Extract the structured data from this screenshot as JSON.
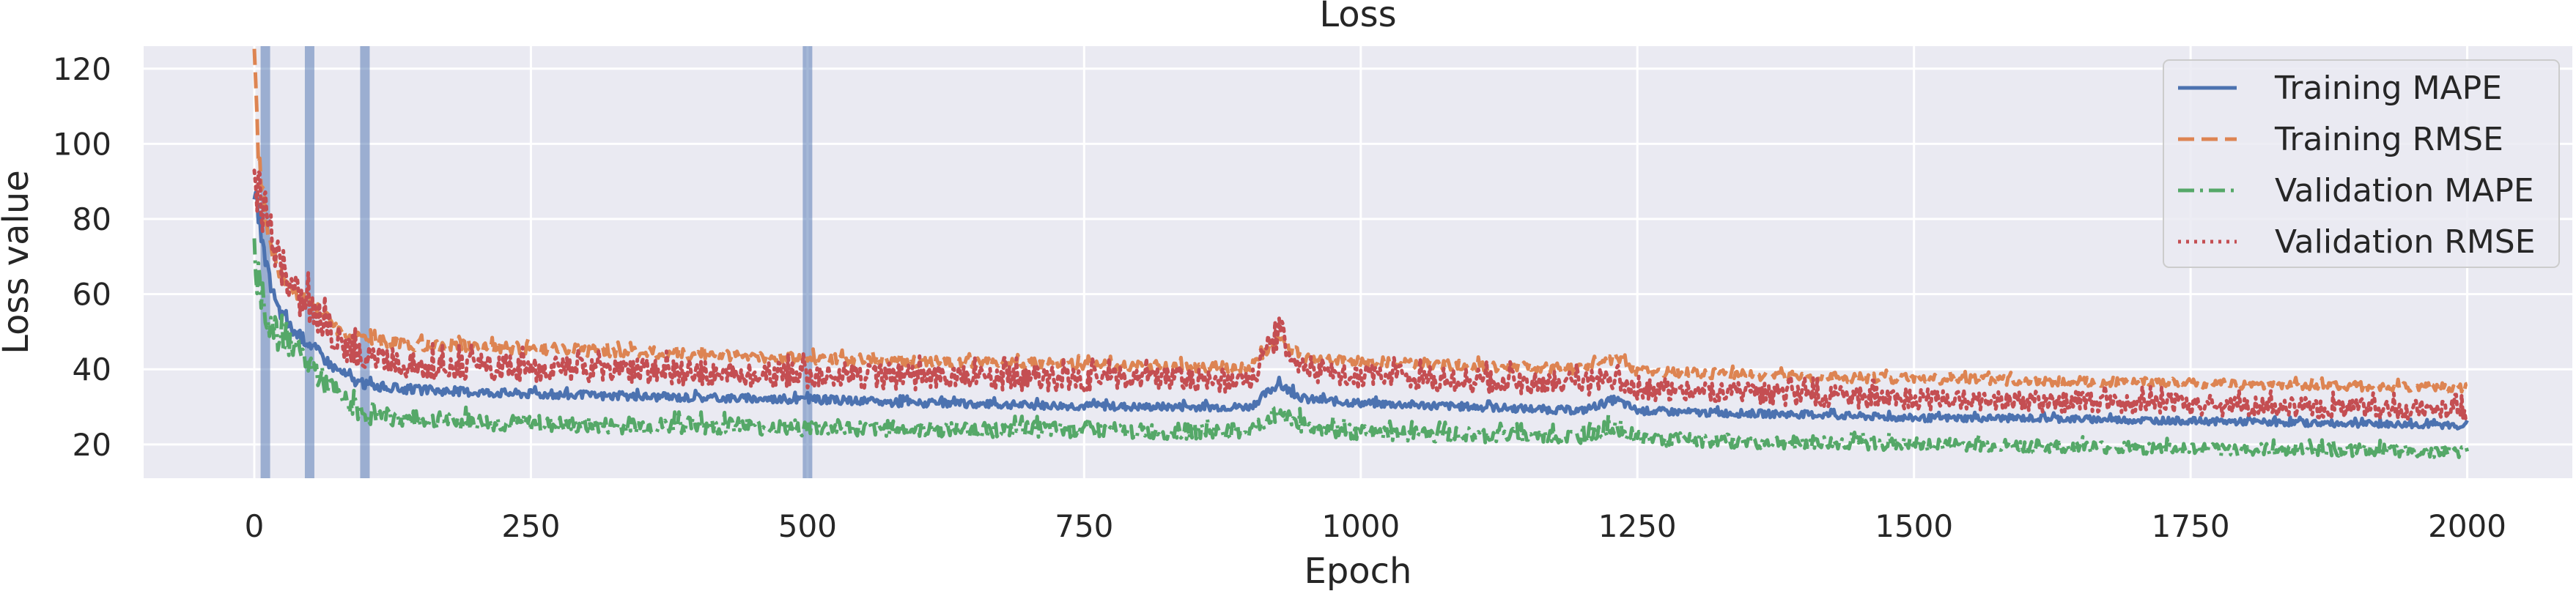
{
  "chart_data": {
    "type": "line",
    "title": "Loss",
    "xlabel": "Epoch",
    "ylabel": "Loss value",
    "xlim": [
      -100,
      2095
    ],
    "ylim": [
      11,
      126
    ],
    "xticks": [
      0,
      250,
      500,
      750,
      1000,
      1250,
      1500,
      1750,
      2000
    ],
    "yticks": [
      20,
      40,
      60,
      80,
      100,
      120
    ],
    "grid": true,
    "legend_position": "top-right",
    "vertical_markers": [
      10,
      50,
      100,
      500
    ],
    "marker_color": "#4c72b0",
    "series": [
      {
        "name": "Training MAPE",
        "color": "#4c72b0",
        "style": "solid",
        "x": [
          0,
          5,
          10,
          20,
          30,
          40,
          50,
          60,
          70,
          80,
          90,
          100,
          125,
          150,
          200,
          250,
          300,
          400,
          500,
          600,
          700,
          800,
          900,
          925,
          950,
          1000,
          1100,
          1200,
          1230,
          1250,
          1300,
          1400,
          1500,
          1600,
          1700,
          1800,
          1900,
          2000
        ],
        "y": [
          88,
          78,
          68,
          57,
          52,
          49,
          47,
          44,
          41,
          39,
          37,
          36,
          35,
          34.5,
          34,
          33.5,
          33,
          32.5,
          32,
          31,
          30.5,
          30,
          30,
          36,
          32,
          31,
          30,
          29,
          32,
          29,
          28.5,
          28,
          27,
          27,
          26.5,
          26,
          25.5,
          25
        ]
      },
      {
        "name": "Training RMSE",
        "color": "#dd8452",
        "style": "dashed",
        "x": [
          0,
          3,
          6,
          10,
          20,
          30,
          40,
          50,
          60,
          70,
          80,
          90,
          100,
          125,
          150,
          200,
          250,
          300,
          400,
          500,
          600,
          700,
          800,
          900,
          925,
          950,
          1000,
          1100,
          1200,
          1230,
          1250,
          1300,
          1400,
          1500,
          1600,
          1700,
          1800,
          1900,
          2000
        ],
        "y": [
          122,
          100,
          90,
          80,
          68,
          63,
          60,
          57,
          55,
          52,
          50,
          49,
          48,
          47,
          46.5,
          46,
          45.5,
          45,
          44,
          43,
          42,
          41.5,
          41,
          40.5,
          48,
          43,
          42,
          41,
          40,
          43,
          39.5,
          39,
          38,
          37.5,
          37,
          36.5,
          36,
          35.5,
          35
        ]
      },
      {
        "name": "Validation MAPE",
        "color": "#55a868",
        "style": "dashdot",
        "x": [
          0,
          5,
          10,
          20,
          30,
          40,
          50,
          60,
          70,
          80,
          90,
          100,
          125,
          150,
          200,
          250,
          300,
          400,
          500,
          600,
          700,
          800,
          900,
          925,
          950,
          1000,
          1100,
          1200,
          1230,
          1250,
          1300,
          1400,
          1500,
          1600,
          1700,
          1800,
          1900,
          2000
        ],
        "y": [
          72,
          60,
          56,
          49,
          46,
          44,
          42,
          38,
          35,
          32,
          30,
          28,
          27,
          26.5,
          26,
          25.5,
          25,
          25,
          24.5,
          24,
          24,
          23.5,
          23.5,
          29,
          25,
          23,
          22.5,
          22,
          25,
          22,
          21,
          20.5,
          20,
          19.5,
          19,
          18.5,
          18.5,
          18
        ]
      },
      {
        "name": "Validation RMSE",
        "color": "#c44e52",
        "style": "dotted",
        "x": [
          0,
          5,
          10,
          20,
          30,
          40,
          50,
          60,
          70,
          80,
          90,
          100,
          125,
          150,
          200,
          250,
          300,
          400,
          500,
          600,
          700,
          800,
          900,
          925,
          950,
          1000,
          1100,
          1200,
          1230,
          1250,
          1300,
          1400,
          1500,
          1600,
          1700,
          1800,
          1900,
          2000
        ],
        "y": [
          92,
          86,
          80,
          71,
          64,
          60,
          57,
          53,
          50,
          47,
          45,
          43,
          42,
          41,
          40.5,
          40,
          39.5,
          39,
          38.5,
          38,
          37.5,
          37.5,
          37,
          50,
          40,
          38,
          37,
          36,
          38,
          35,
          34,
          33,
          32,
          31.5,
          31,
          30,
          29.5,
          29
        ]
      }
    ]
  }
}
